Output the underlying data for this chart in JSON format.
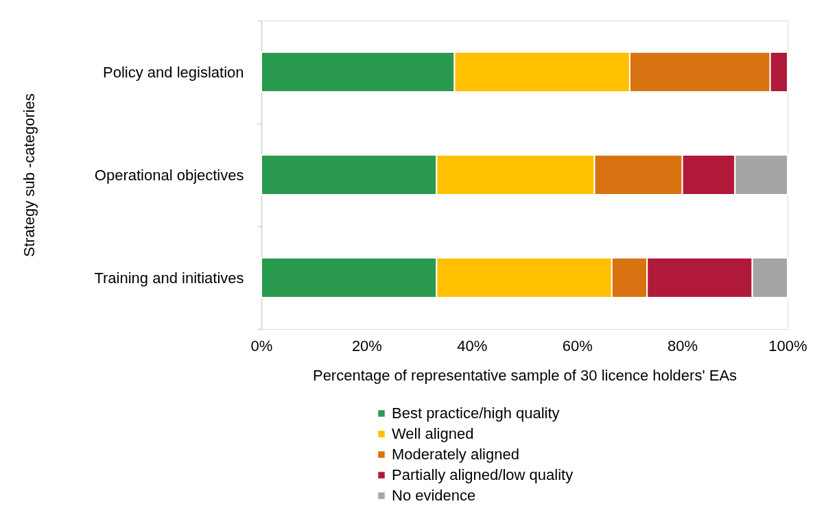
{
  "chart_data": {
    "type": "bar",
    "orientation": "horizontal",
    "stacked": true,
    "categories": [
      "Policy and legislation",
      "Operational objectives",
      "Training and initiatives"
    ],
    "series": [
      {
        "name": "Best practice/high quality",
        "color": "#2a9b4e",
        "values": [
          36.7,
          33.3,
          33.3
        ]
      },
      {
        "name": "Well aligned",
        "color": "#ffc000",
        "values": [
          33.3,
          30.0,
          33.3
        ]
      },
      {
        "name": "Moderately aligned",
        "color": "#d97311",
        "values": [
          26.7,
          16.7,
          6.7
        ]
      },
      {
        "name": "Partially aligned/low quality",
        "color": "#b0193a",
        "values": [
          3.3,
          10.0,
          20.0
        ]
      },
      {
        "name": "No evidence",
        "color": "#a5a5a5",
        "values": [
          0,
          10.0,
          6.7
        ]
      }
    ],
    "xlim": [
      0,
      100
    ],
    "xticks": [
      {
        "value": 0,
        "label": "0%"
      },
      {
        "value": 20,
        "label": "20%"
      },
      {
        "value": 40,
        "label": "40%"
      },
      {
        "value": 60,
        "label": "60%"
      },
      {
        "value": 80,
        "label": "80%"
      },
      {
        "value": 100,
        "label": "100%"
      }
    ],
    "xlabel": "Percentage of representative sample of 30 licence holders' EAs",
    "ylabel": "Strategy sub -categories",
    "grid": false,
    "legend": "bottom"
  }
}
